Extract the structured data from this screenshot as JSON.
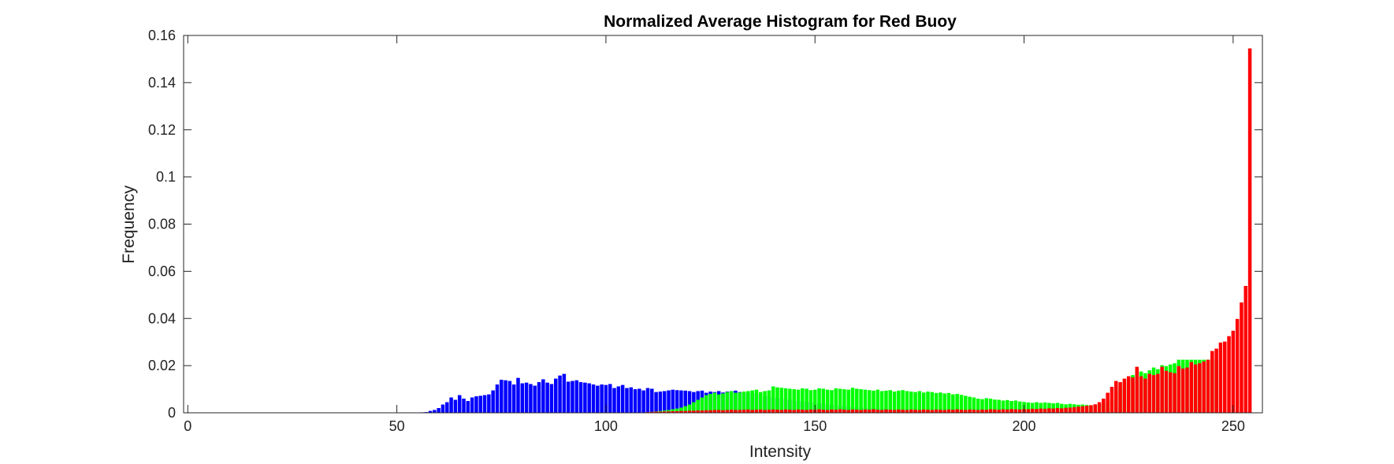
{
  "chart_data": {
    "type": "bar",
    "title": "Normalized Average Histogram for Red Buoy",
    "xlabel": "Intensity",
    "ylabel": "Frequency",
    "xlim": [
      -1,
      257
    ],
    "ylim": [
      0,
      0.16
    ],
    "xticks": [
      0,
      50,
      100,
      150,
      200,
      250
    ],
    "xtick_labels": [
      "0",
      "50",
      "100",
      "150",
      "200",
      "250"
    ],
    "yticks": [
      0,
      0.02,
      0.04,
      0.06,
      0.08,
      0.1,
      0.12,
      0.14,
      0.16
    ],
    "ytick_labels": [
      "0",
      "0.02",
      "0.04",
      "0.06",
      "0.08",
      "0.1",
      "0.12",
      "0.14",
      "0.16"
    ],
    "grid": false,
    "box": true,
    "series": [
      {
        "color": "#0000ff",
        "x_start": 0,
        "values": [
          0,
          0,
          0,
          0,
          0,
          0,
          0,
          0,
          0,
          0,
          0,
          0,
          0,
          0,
          0,
          0,
          0,
          0,
          0,
          0,
          0,
          0,
          0,
          0,
          0,
          0,
          0,
          0,
          0,
          0,
          0,
          0,
          0,
          0,
          0,
          0,
          0,
          0,
          0,
          0,
          0,
          0,
          0,
          0,
          0,
          0,
          0,
          0,
          0,
          0,
          0,
          0,
          0,
          0,
          0,
          0,
          0.0002,
          0.0003,
          0.0008,
          0.0012,
          0.002,
          0.0035,
          0.0045,
          0.0065,
          0.0055,
          0.0075,
          0.006,
          0.005,
          0.0065,
          0.007,
          0.0072,
          0.0075,
          0.0078,
          0.0095,
          0.012,
          0.014,
          0.0138,
          0.0135,
          0.012,
          0.0148,
          0.0125,
          0.0128,
          0.0122,
          0.0115,
          0.013,
          0.0142,
          0.0128,
          0.0122,
          0.0145,
          0.0158,
          0.0165,
          0.0132,
          0.0135,
          0.0138,
          0.013,
          0.0128,
          0.0125,
          0.012,
          0.0115,
          0.012,
          0.0118,
          0.0122,
          0.0105,
          0.0112,
          0.0118,
          0.0105,
          0.0108,
          0.01,
          0.0102,
          0.0095,
          0.0105,
          0.0102,
          0.0088,
          0.009,
          0.0092,
          0.0095,
          0.0098,
          0.0096,
          0.0095,
          0.0094,
          0.0092,
          0.0088,
          0.0092,
          0.0094,
          0.0085,
          0.009,
          0.0088,
          0.0092,
          0.0086,
          0.009,
          0.0092,
          0.0094,
          0.0088,
          0.0086,
          0.0082,
          0.0085,
          0.008,
          0.0072,
          0.007,
          0.0068,
          0.0065,
          0.0062,
          0.006,
          0.0058,
          0.0055,
          0.0052,
          0.005,
          0.0048,
          0.0046,
          0.0044,
          0.0042,
          0.004,
          0.0038,
          0.0036,
          0.0034,
          0.0032,
          0.003,
          0.0028,
          0.0026,
          0.0025,
          0.0024,
          0.0022,
          0.0021,
          0.002,
          0.0019,
          0.0018,
          0.0017,
          0.0016,
          0.0015,
          0.0014,
          0.0013,
          0.0012,
          0.0012,
          0.0011,
          0.001,
          0.001,
          0.0009,
          0.0009,
          0.0008,
          0.0008,
          0.0007,
          0.0007,
          0.0006,
          0.0006,
          0.0006,
          0.0005,
          0.0005,
          0.0005,
          0.0004,
          0.0004,
          0.0004,
          0.0003,
          0.0003,
          0.0003,
          0.0003,
          0.0002,
          0.0002,
          0.0002,
          0.0002,
          0.0002,
          0.0002,
          0.0001,
          0.0001,
          0.0001,
          0.0001,
          0.0001,
          0.0001,
          0.0001,
          0.0001,
          0.0001,
          0.0001,
          0.0001,
          0.0001,
          0.0001,
          0.0001,
          0.0001,
          0.0001,
          0.0001,
          0.0001,
          0,
          0,
          0,
          0,
          0,
          0,
          0,
          0,
          0,
          0,
          0,
          0,
          0,
          0,
          0,
          0,
          0,
          0,
          0,
          0,
          0,
          0,
          0,
          0,
          0,
          0,
          0,
          0,
          0,
          0,
          0,
          0,
          0
        ]
      },
      {
        "color": "#00ff00",
        "x_start": 0,
        "values": [
          0,
          0,
          0,
          0,
          0,
          0,
          0,
          0,
          0,
          0,
          0,
          0,
          0,
          0,
          0,
          0,
          0,
          0,
          0,
          0,
          0,
          0,
          0,
          0,
          0,
          0,
          0,
          0,
          0,
          0,
          0,
          0,
          0,
          0,
          0,
          0,
          0,
          0,
          0,
          0,
          0,
          0,
          0,
          0,
          0,
          0,
          0,
          0,
          0,
          0,
          0,
          0,
          0,
          0,
          0,
          0,
          0,
          0,
          0,
          0,
          0,
          0,
          0,
          0,
          0,
          0,
          0,
          0,
          0,
          0,
          0,
          0,
          0,
          0,
          0,
          0,
          0,
          0,
          0,
          0,
          0,
          0,
          0,
          0,
          0,
          0,
          0,
          0,
          0,
          0,
          0,
          0,
          0,
          0,
          0,
          0,
          0,
          0,
          0,
          0,
          0,
          0,
          0,
          0,
          0,
          0,
          0,
          0,
          0,
          0,
          0.0002,
          0.0004,
          0.0006,
          0.0008,
          0.001,
          0.0012,
          0.0015,
          0.0018,
          0.0022,
          0.0028,
          0.0035,
          0.0045,
          0.0055,
          0.0065,
          0.0075,
          0.008,
          0.0085,
          0.0078,
          0.0082,
          0.0088,
          0.0092,
          0.0085,
          0.0086,
          0.009,
          0.0092,
          0.0095,
          0.0098,
          0.0088,
          0.0092,
          0.0095,
          0.0112,
          0.0108,
          0.0106,
          0.0104,
          0.0102,
          0.01,
          0.0098,
          0.0104,
          0.0102,
          0.0096,
          0.0098,
          0.0104,
          0.0102,
          0.0098,
          0.0096,
          0.0104,
          0.0102,
          0.01,
          0.0098,
          0.0106,
          0.0102,
          0.01,
          0.0098,
          0.0096,
          0.0094,
          0.0098,
          0.0092,
          0.0094,
          0.0096,
          0.009,
          0.0094,
          0.0096,
          0.0092,
          0.009,
          0.0088,
          0.0092,
          0.0086,
          0.009,
          0.0088,
          0.0084,
          0.0086,
          0.0082,
          0.0084,
          0.0078,
          0.008,
          0.0076,
          0.0072,
          0.0068,
          0.0065,
          0.006,
          0.0058,
          0.0062,
          0.006,
          0.0056,
          0.0055,
          0.0052,
          0.0054,
          0.005,
          0.0052,
          0.0048,
          0.0046,
          0.0044,
          0.0042,
          0.0045,
          0.0042,
          0.0044,
          0.0042,
          0.004,
          0.0042,
          0.0038,
          0.0036,
          0.0038,
          0.0036,
          0.0034,
          0.0035,
          0.0033,
          0.0032,
          0.003,
          0.0035,
          0.004,
          0.0045,
          0.0055,
          0.0085,
          0.011,
          0.0125,
          0.014,
          0.016,
          0.0185,
          0.0175,
          0.0168,
          0.018,
          0.0192,
          0.0185,
          0.0202,
          0.0198,
          0.0205,
          0.021,
          0.0225,
          0.0225,
          0.0225,
          0.0225,
          0.0225,
          0.0225,
          0.0225,
          0.0225,
          0.0225,
          0.0225
        ]
      },
      {
        "color": "#ff0000",
        "x_start": 0,
        "values": [
          0,
          0,
          0,
          0,
          0,
          0,
          0,
          0,
          0,
          0,
          0,
          0,
          0,
          0,
          0,
          0,
          0,
          0,
          0,
          0,
          0,
          0,
          0,
          0,
          0,
          0,
          0,
          0,
          0,
          0,
          0,
          0,
          0,
          0,
          0,
          0,
          0,
          0,
          0,
          0,
          0,
          0,
          0,
          0,
          0,
          0,
          0,
          0,
          0,
          0,
          0,
          0,
          0,
          0,
          0,
          0,
          0,
          0,
          0,
          0,
          0,
          0,
          0,
          0,
          0,
          0,
          0,
          0,
          0,
          0,
          0,
          0,
          0,
          0,
          0,
          0,
          0,
          0,
          0,
          0,
          0,
          0,
          0,
          0,
          0,
          0,
          0,
          0,
          0,
          0,
          0,
          0,
          0,
          0,
          0,
          0,
          0,
          0,
          0,
          0,
          0,
          0,
          0,
          0,
          0,
          0,
          0,
          0,
          0,
          0,
          0.0003,
          0.0004,
          0.0005,
          0.0005,
          0.0006,
          0.0006,
          0.0007,
          0.0007,
          0.0008,
          0.0008,
          0.0009,
          0.0009,
          0.001,
          0.001,
          0.0011,
          0.0011,
          0.0012,
          0.0012,
          0.0011,
          0.0012,
          0.0013,
          0.0012,
          0.0012,
          0.0013,
          0.0014,
          0.0012,
          0.0013,
          0.0014,
          0.0012,
          0.0013,
          0.0014,
          0.0013,
          0.0012,
          0.0014,
          0.0013,
          0.0012,
          0.0014,
          0.0013,
          0.0012,
          0.0014,
          0.0013,
          0.0015,
          0.0013,
          0.0012,
          0.0014,
          0.0013,
          0.0015,
          0.0013,
          0.0012,
          0.0014,
          0.0013,
          0.0012,
          0.0014,
          0.0013,
          0.0015,
          0.0013,
          0.0012,
          0.0014,
          0.0013,
          0.0012,
          0.0014,
          0.0013,
          0.0012,
          0.0014,
          0.0013,
          0.0012,
          0.0014,
          0.0013,
          0.0012,
          0.0014,
          0.0013,
          0.0012,
          0.0014,
          0.0013,
          0.0015,
          0.0013,
          0.0012,
          0.0014,
          0.0013,
          0.0012,
          0.0014,
          0.0013,
          0.0015,
          0.0014,
          0.0013,
          0.0015,
          0.0014,
          0.0016,
          0.0015,
          0.0014,
          0.0016,
          0.0015,
          0.0017,
          0.0016,
          0.0018,
          0.0017,
          0.0019,
          0.0018,
          0.002,
          0.0019,
          0.0021,
          0.0022,
          0.0024,
          0.0026,
          0.0028,
          0.003,
          0.0032,
          0.0036,
          0.0045,
          0.006,
          0.0085,
          0.011,
          0.0135,
          0.013,
          0.0145,
          0.0155,
          0.015,
          0.0195,
          0.0155,
          0.0145,
          0.0165,
          0.016,
          0.0165,
          0.0195,
          0.0178,
          0.0172,
          0.0168,
          0.0198,
          0.0188,
          0.0192,
          0.0215,
          0.0205,
          0.021,
          0.0218,
          0.0225,
          0.0262,
          0.0272,
          0.0298,
          0.0302,
          0.0325,
          0.0348,
          0.0398,
          0.0468,
          0.0538,
          0.1545
        ]
      }
    ]
  }
}
